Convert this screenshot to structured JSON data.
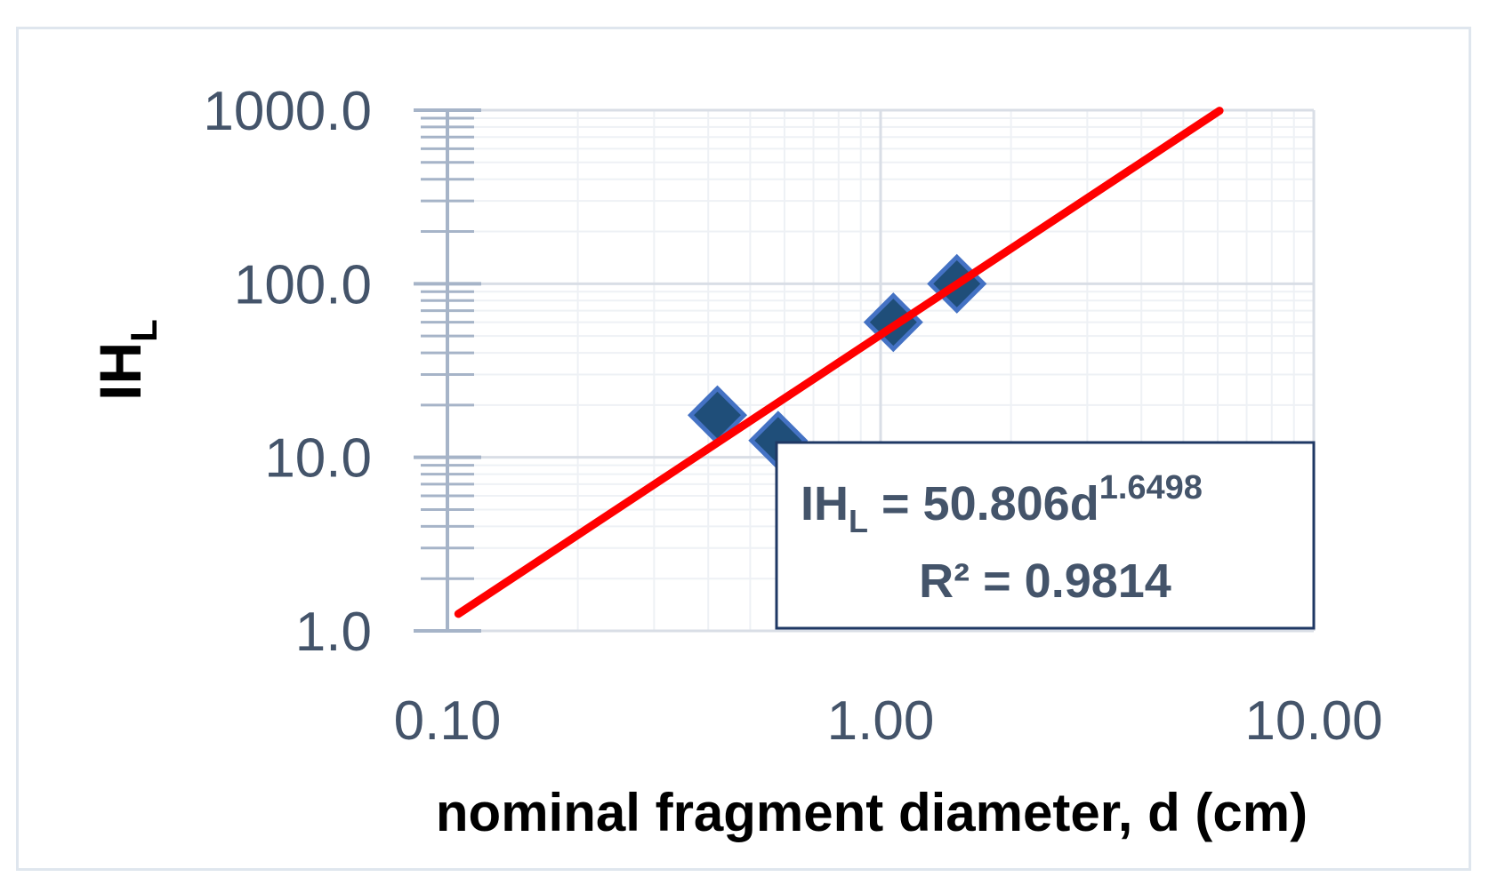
{
  "chart_data": {
    "type": "scatter",
    "xlabel": "nominal fragment diameter, d (cm)",
    "ylabel": {
      "main": "IH",
      "sub": "L"
    },
    "x_scale": "log",
    "y_scale": "log",
    "xlim": [
      0.1,
      10
    ],
    "ylim": [
      1,
      1000
    ],
    "x_ticks": [
      "0.10",
      "1.00",
      "10.00"
    ],
    "y_ticks": [
      "1.0",
      "10.0",
      "100.0",
      "1000.0"
    ],
    "grid": true,
    "points": [
      {
        "x": 0.42,
        "y": 17.5
      },
      {
        "x": 0.58,
        "y": 12.5
      },
      {
        "x": 1.07,
        "y": 60.0
      },
      {
        "x": 1.5,
        "y": 100.0
      }
    ],
    "trendline": {
      "type": "power",
      "coef": 50.806,
      "exponent": 1.6498,
      "x_range": [
        0.1,
        6.06
      ],
      "equation": {
        "prefix": "IH",
        "prefix_sub": "L",
        "body": " = 50.806d",
        "exponent_text": "1.6498"
      },
      "r2_text": "R² = 0.9814"
    },
    "colors": {
      "marker_fill": "#1f4e79",
      "marker_stroke": "#4472c4",
      "trendline": "#ff0000",
      "grid": "#d9dee6",
      "axis": "#a6b4c8",
      "tick_text": "#44546a",
      "box_border": "#1f3864"
    }
  }
}
